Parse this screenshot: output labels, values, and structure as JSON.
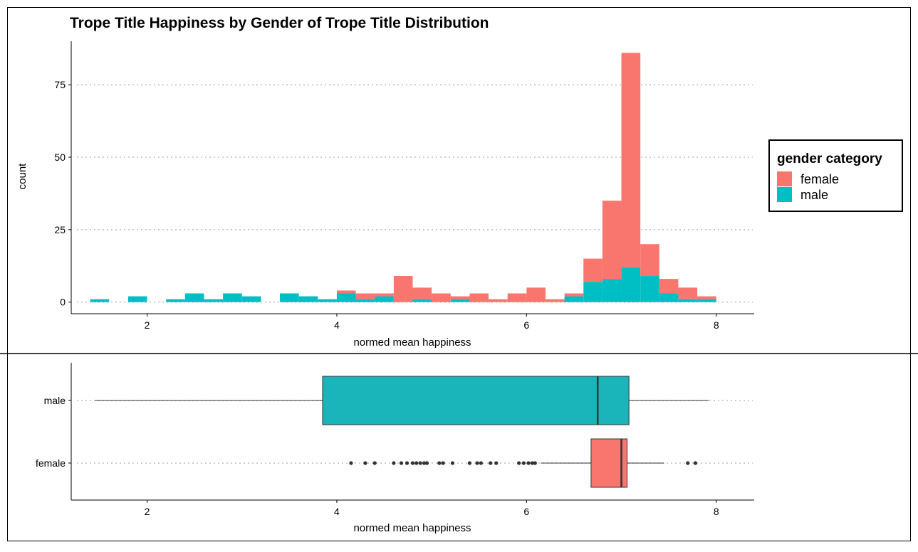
{
  "chart_data": [
    {
      "type": "bar",
      "subtype": "stacked-histogram",
      "title": "Trope Title Happiness by Gender of Trope Title Distribution",
      "xlabel": "normed mean happiness",
      "ylabel": "count",
      "xlim": [
        1.2,
        8.4
      ],
      "ylim": [
        -4,
        90
      ],
      "xticks": [
        2,
        4,
        6,
        8
      ],
      "yticks": [
        0,
        25,
        50,
        75
      ],
      "grid": "horizontal dotted",
      "bin_width": 0.2,
      "bins": [
        1.5,
        1.7,
        1.9,
        2.1,
        2.3,
        2.5,
        2.7,
        2.9,
        3.1,
        3.3,
        3.5,
        3.7,
        3.9,
        4.1,
        4.3,
        4.5,
        4.7,
        4.9,
        5.1,
        5.3,
        5.5,
        5.7,
        5.9,
        6.1,
        6.3,
        6.5,
        6.7,
        6.9,
        7.1,
        7.3,
        7.5,
        7.7,
        7.9
      ],
      "legend": {
        "title": "gender category",
        "position": "right"
      },
      "series": [
        {
          "name": "female",
          "color": "#F8766D",
          "values": [
            0,
            0,
            0,
            0,
            0,
            0,
            0,
            0,
            0,
            0,
            0,
            0,
            0,
            1,
            2,
            1,
            9,
            4,
            3,
            1,
            3,
            1,
            3,
            5,
            1,
            1,
            8,
            27,
            74,
            11,
            5,
            4,
            1
          ]
        },
        {
          "name": "male",
          "color": "#00BFC4",
          "values": [
            1,
            0,
            2,
            0,
            1,
            3,
            1,
            3,
            2,
            0,
            3,
            2,
            1,
            3,
            1,
            2,
            0,
            1,
            0,
            1,
            0,
            0,
            0,
            0,
            0,
            2,
            7,
            8,
            12,
            9,
            3,
            1,
            1
          ]
        }
      ]
    },
    {
      "type": "box",
      "orientation": "horizontal",
      "xlabel": "normed mean happiness",
      "xlim": [
        1.2,
        8.4
      ],
      "xticks": [
        2,
        4,
        6,
        8
      ],
      "categories": [
        "male",
        "female"
      ],
      "grid": "horizontal dotted",
      "boxes": [
        {
          "name": "male",
          "color": "#1AB5BA",
          "whisker_low": 1.45,
          "q1": 3.85,
          "median": 6.75,
          "q3": 7.08,
          "whisker_high": 7.92,
          "outliers": []
        },
        {
          "name": "female",
          "color": "#F8766D",
          "whisker_low": 6.15,
          "q1": 6.68,
          "median": 7.0,
          "q3": 7.06,
          "whisker_high": 7.45,
          "outliers": [
            4.15,
            4.3,
            4.4,
            4.6,
            4.68,
            4.74,
            4.8,
            4.84,
            4.88,
            4.92,
            4.95,
            5.08,
            5.12,
            5.22,
            5.4,
            5.48,
            5.52,
            5.62,
            5.68,
            5.92,
            5.97,
            6.02,
            6.06,
            6.09,
            7.7,
            7.78
          ]
        }
      ]
    }
  ]
}
